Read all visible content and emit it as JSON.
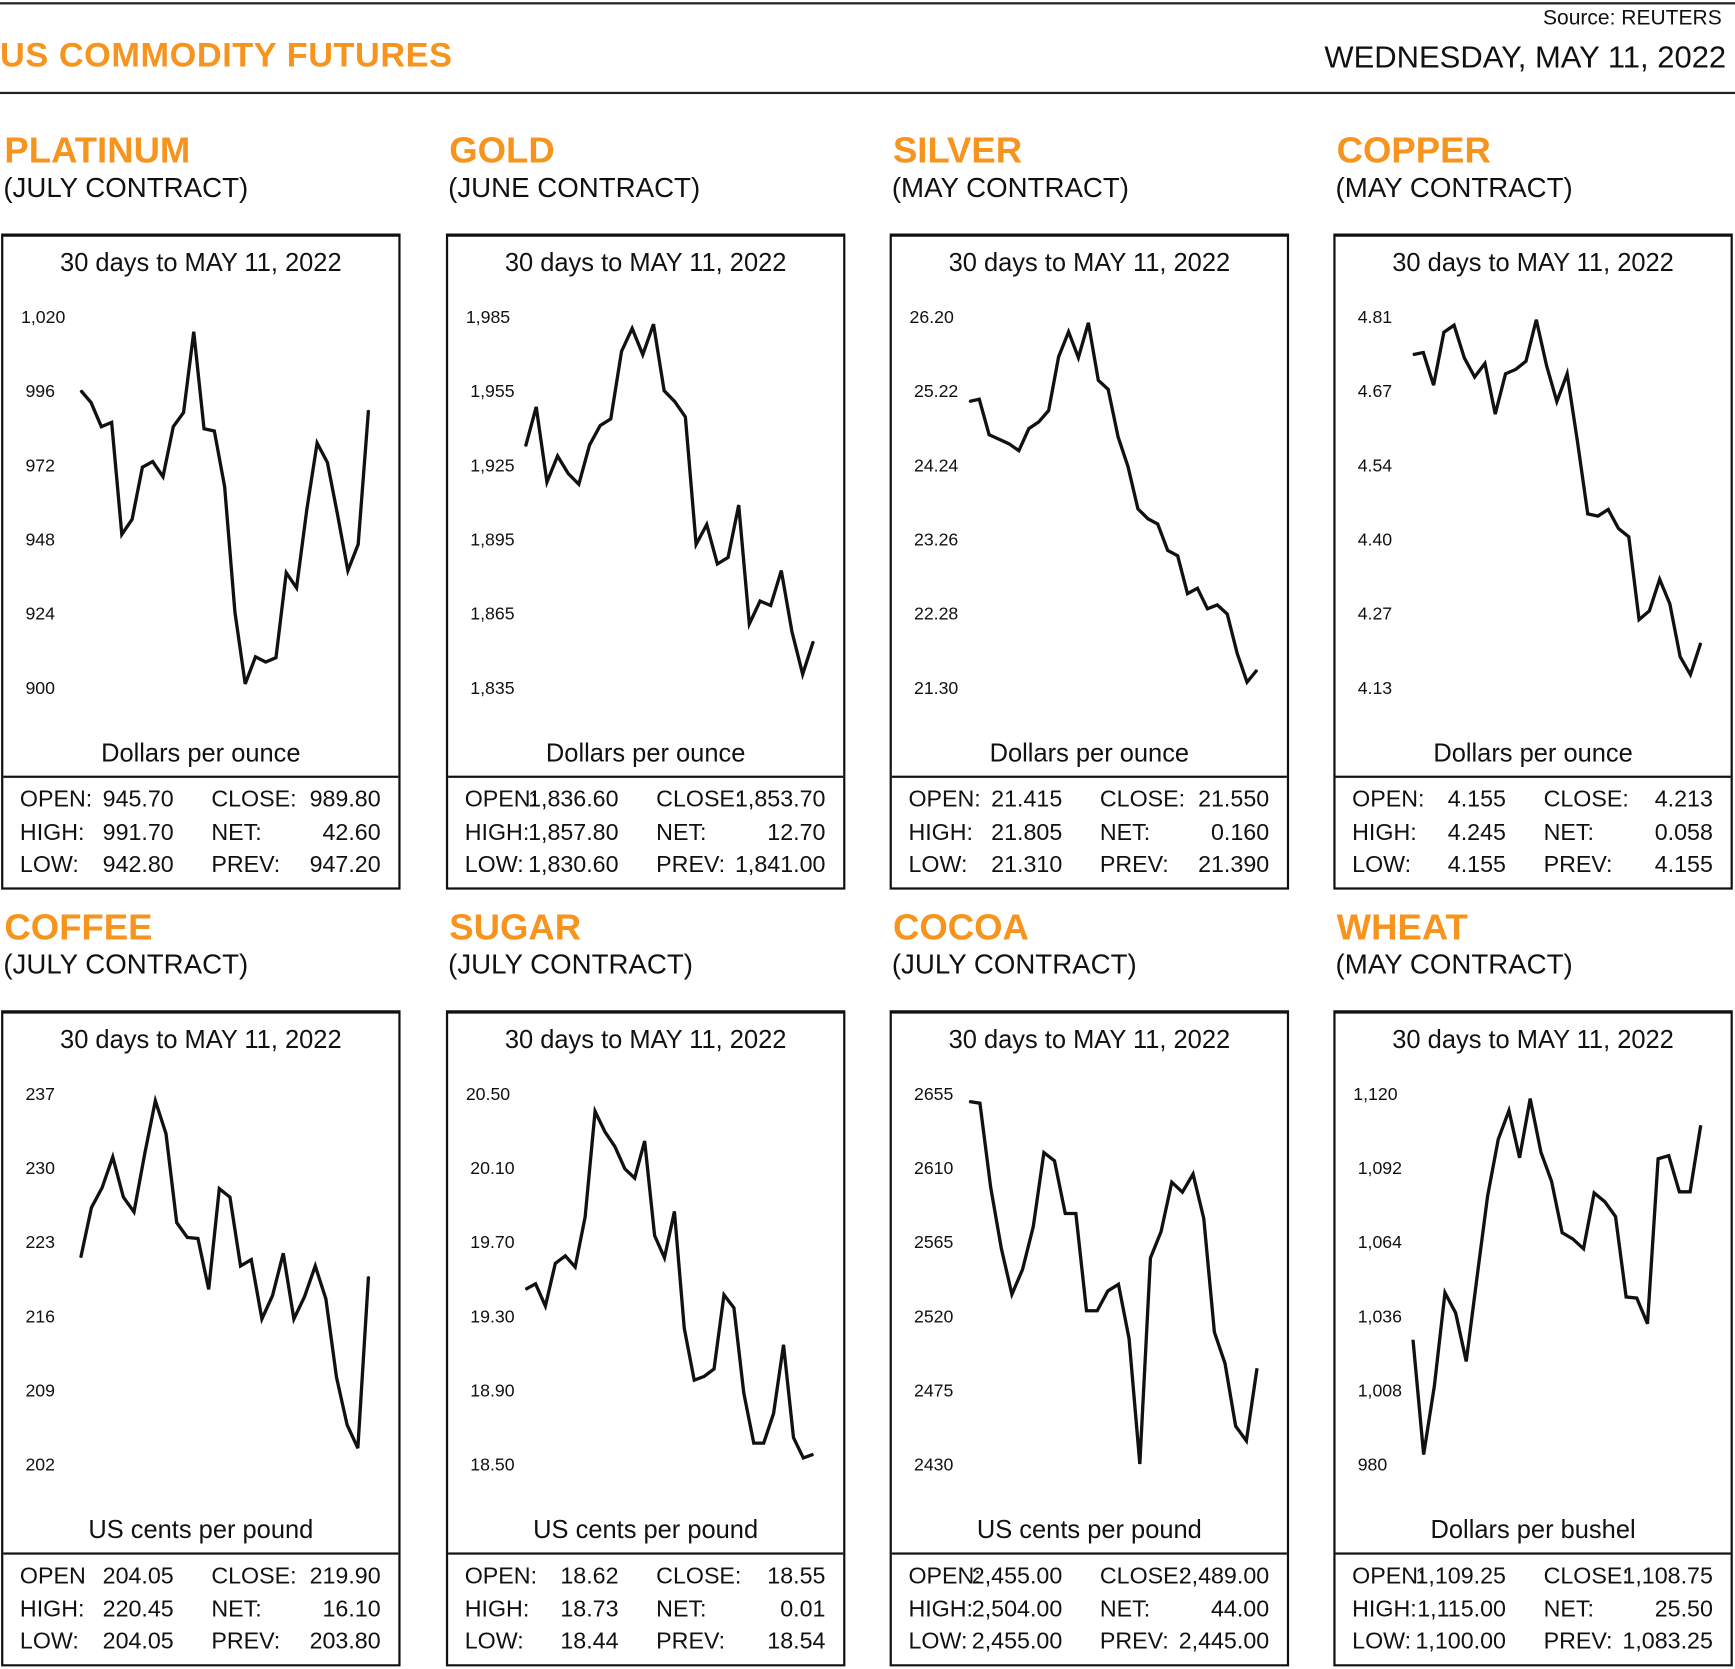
{
  "header": {
    "title": "US COMMODITY FUTURES",
    "source": "Source: REUTERS",
    "date": "WEDNESDAY, MAY 11, 2022"
  },
  "colors": {
    "accent": "#F7941D",
    "line": "#111111"
  },
  "chart_data": [
    {
      "type": "line",
      "title": "PLATINUM",
      "subtitle": "(JULY CONTRACT)",
      "caption": "30 days to MAY 11, 2022",
      "ylabel": "Dollars per ounce",
      "yticks": [
        "1,020",
        "996",
        "972",
        "948",
        "924",
        "900"
      ],
      "ylim": [
        900,
        1020
      ],
      "values": [
        997.1,
        993.2,
        985.4,
        986.8,
        950.5,
        955.4,
        972.3,
        974.1,
        969.2,
        985.4,
        990.0,
        1016.1,
        984.7,
        984.0,
        966.0,
        925.4,
        902.1,
        910.9,
        909.2,
        910.6,
        938.1,
        933.2,
        958.6,
        980.1,
        973.8,
        956.8,
        938.8,
        947.3,
        990.7
      ],
      "stats": [
        [
          "OPEN:",
          "945.70",
          "CLOSE:",
          "989.80"
        ],
        [
          "HIGH:",
          "991.70",
          "NET:",
          "42.60"
        ],
        [
          "LOW:",
          "942.80",
          "PREV:",
          "947.20"
        ]
      ]
    },
    {
      "type": "line",
      "title": "GOLD",
      "subtitle": "(JUNE CONTRACT)",
      "caption": "30 days to MAY 11, 2022",
      "ylabel": "Dollars per ounce",
      "yticks": [
        "1,985",
        "1,955",
        "1,925",
        "1,895",
        "1,865",
        "1,835"
      ],
      "ylim": [
        1835,
        1985
      ],
      "values": [
        1933.8,
        1949.7,
        1919.3,
        1929.9,
        1922.8,
        1918.4,
        1934.3,
        1942.2,
        1944.9,
        1972.2,
        1981.5,
        1970.9,
        1983.2,
        1956.3,
        1951.9,
        1945.7,
        1894.1,
        1902.1,
        1886.2,
        1888.8,
        1910.0,
        1861.9,
        1871.2,
        1869.4,
        1883.5,
        1858.8,
        1841.6,
        1854.9
      ],
      "stats": [
        [
          "OPEN:",
          "1,836.60",
          "CLOSE:",
          "1,853.70"
        ],
        [
          "HIGH:",
          "1,857.80",
          "NET:",
          "12.70"
        ],
        [
          "LOW:",
          "1,830.60",
          "PREV:",
          "1,841.00"
        ]
      ]
    },
    {
      "type": "line",
      "title": "SILVER",
      "subtitle": "(MAY CONTRACT)",
      "caption": "30 days to MAY 11, 2022",
      "ylabel": "Dollars per ounce",
      "yticks": [
        "26.20",
        "25.22",
        "24.24",
        "23.26",
        "22.28",
        "21.30"
      ],
      "ylim": [
        21.3,
        26.2
      ],
      "values": [
        25.12,
        25.15,
        24.68,
        24.62,
        24.56,
        24.47,
        24.76,
        24.85,
        25.0,
        25.71,
        26.04,
        25.7,
        26.16,
        25.4,
        25.28,
        24.65,
        24.26,
        23.7,
        23.57,
        23.5,
        23.15,
        23.08,
        22.58,
        22.65,
        22.38,
        22.43,
        22.31,
        21.79,
        21.41,
        21.57
      ],
      "stats": [
        [
          "OPEN:",
          "21.415",
          "CLOSE:",
          "21.550"
        ],
        [
          "HIGH:",
          "21.805",
          "NET:",
          "0.160"
        ],
        [
          "LOW:",
          "21.310",
          "PREV:",
          "21.390"
        ]
      ]
    },
    {
      "type": "line",
      "title": "COPPER",
      "subtitle": "(MAY CONTRACT)",
      "caption": "30 days to MAY 11, 2022",
      "ylabel": "Dollars per ounce",
      "yticks": [
        "4.81",
        "4.67",
        "4.54",
        "4.40",
        "4.27",
        "4.13"
      ],
      "ylim": [
        4.13,
        4.81
      ],
      "values": [
        4.746,
        4.75,
        4.69,
        4.787,
        4.8,
        4.74,
        4.705,
        4.73,
        4.637,
        4.711,
        4.719,
        4.734,
        4.81,
        4.726,
        4.66,
        4.711,
        4.587,
        4.454,
        4.45,
        4.462,
        4.427,
        4.412,
        4.26,
        4.276,
        4.334,
        4.289,
        4.192,
        4.159,
        4.217
      ],
      "stats": [
        [
          "OPEN:",
          "4.155",
          "CLOSE:",
          "4.213"
        ],
        [
          "HIGH:",
          "4.245",
          "NET:",
          "0.058"
        ],
        [
          "LOW:",
          "4.155",
          "PREV:",
          "4.155"
        ]
      ]
    },
    {
      "type": "line",
      "title": "COFFEE",
      "subtitle": "(JULY CONTRACT)",
      "caption": "30 days to MAY 11, 2022",
      "ylabel": "US cents per pound",
      "yticks": [
        "237",
        "230",
        "223",
        "216",
        "209",
        "202"
      ],
      "ylim": [
        202,
        237
      ],
      "values": [
        221.8,
        226.5,
        228.4,
        231.3,
        227.5,
        226.1,
        231.6,
        236.6,
        233.5,
        225.1,
        223.7,
        223.6,
        218.8,
        228.3,
        227.5,
        221.0,
        221.6,
        216.0,
        218.2,
        222.2,
        216.0,
        218.1,
        221.0,
        217.9,
        210.5,
        206.0,
        203.8,
        220.0
      ],
      "stats": [
        [
          "OPEN",
          "204.05",
          "CLOSE:",
          "219.90"
        ],
        [
          "HIGH:",
          "220.45",
          "NET:",
          "16.10"
        ],
        [
          "LOW:",
          "204.05",
          "PREV:",
          "203.80"
        ]
      ]
    },
    {
      "type": "line",
      "title": "SUGAR",
      "subtitle": "(JULY CONTRACT)",
      "caption": "30 days to MAY 11, 2022",
      "ylabel": "US cents per pound",
      "yticks": [
        "20.50",
        "20.10",
        "19.70",
        "19.30",
        "18.90",
        "18.50"
      ],
      "ylim": [
        18.5,
        20.5
      ],
      "values": [
        19.46,
        19.49,
        19.37,
        19.6,
        19.64,
        19.58,
        19.85,
        20.42,
        20.31,
        20.23,
        20.11,
        20.06,
        20.26,
        19.75,
        19.63,
        19.88,
        19.25,
        18.97,
        18.99,
        19.03,
        19.43,
        19.36,
        18.9,
        18.63,
        18.63,
        18.79,
        19.16,
        18.66,
        18.55,
        18.57
      ],
      "stats": [
        [
          "OPEN:",
          "18.62",
          "CLOSE:",
          "18.55"
        ],
        [
          "HIGH:",
          "18.73",
          "NET:",
          "0.01"
        ],
        [
          "LOW:",
          "18.44",
          "PREV:",
          "18.54"
        ]
      ]
    },
    {
      "type": "line",
      "title": "COCOA",
      "subtitle": "(JULY CONTRACT)",
      "caption": "30 days to MAY 11, 2022",
      "ylabel": "US cents per pound",
      "yticks": [
        "2655",
        "2610",
        "2565",
        "2520",
        "2475",
        "2430"
      ],
      "ylim": [
        2430,
        2655
      ],
      "values": [
        2652,
        2651,
        2600,
        2563,
        2535,
        2550,
        2576,
        2621,
        2616,
        2584,
        2584,
        2525,
        2525,
        2537,
        2541,
        2508,
        2432,
        2557,
        2573,
        2603,
        2597,
        2608,
        2581,
        2512,
        2493,
        2455,
        2446,
        2490
      ],
      "stats": [
        [
          "OPEN:",
          "2,455.00",
          "CLOSE:",
          "2,489.00"
        ],
        [
          "HIGH:",
          "2,504.00",
          "NET:",
          "44.00"
        ],
        [
          "LOW:",
          "2,455.00",
          "PREV:",
          "2,445.00"
        ]
      ]
    },
    {
      "type": "line",
      "title": "WHEAT",
      "subtitle": "(MAY CONTRACT)",
      "caption": "30 days to MAY 11, 2022",
      "ylabel": "Dollars per bushel",
      "yticks": [
        "1,120",
        "1,092",
        "1,064",
        "1,036",
        "1,008",
        "980"
      ],
      "ylim": [
        980,
        1120
      ],
      "values": [
        1028.1,
        984.8,
        1010.7,
        1045.9,
        1038.3,
        1020.0,
        1051.6,
        1082.4,
        1103.8,
        1114.7,
        1096.9,
        1119.2,
        1099.0,
        1088.0,
        1068.6,
        1066.2,
        1062.5,
        1083.6,
        1080.3,
        1074.7,
        1044.3,
        1043.9,
        1034.2,
        1096.5,
        1097.7,
        1084.0,
        1084.0,
        1109.1
      ],
      "stats": [
        [
          "OPEN:",
          "1,109.25",
          "CLOSE:",
          "1,108.75"
        ],
        [
          "HIGH:",
          "1,115.00",
          "NET:",
          "25.50"
        ],
        [
          "LOW:",
          "1,100.00",
          "PREV:",
          "1,083.25"
        ]
      ]
    }
  ]
}
